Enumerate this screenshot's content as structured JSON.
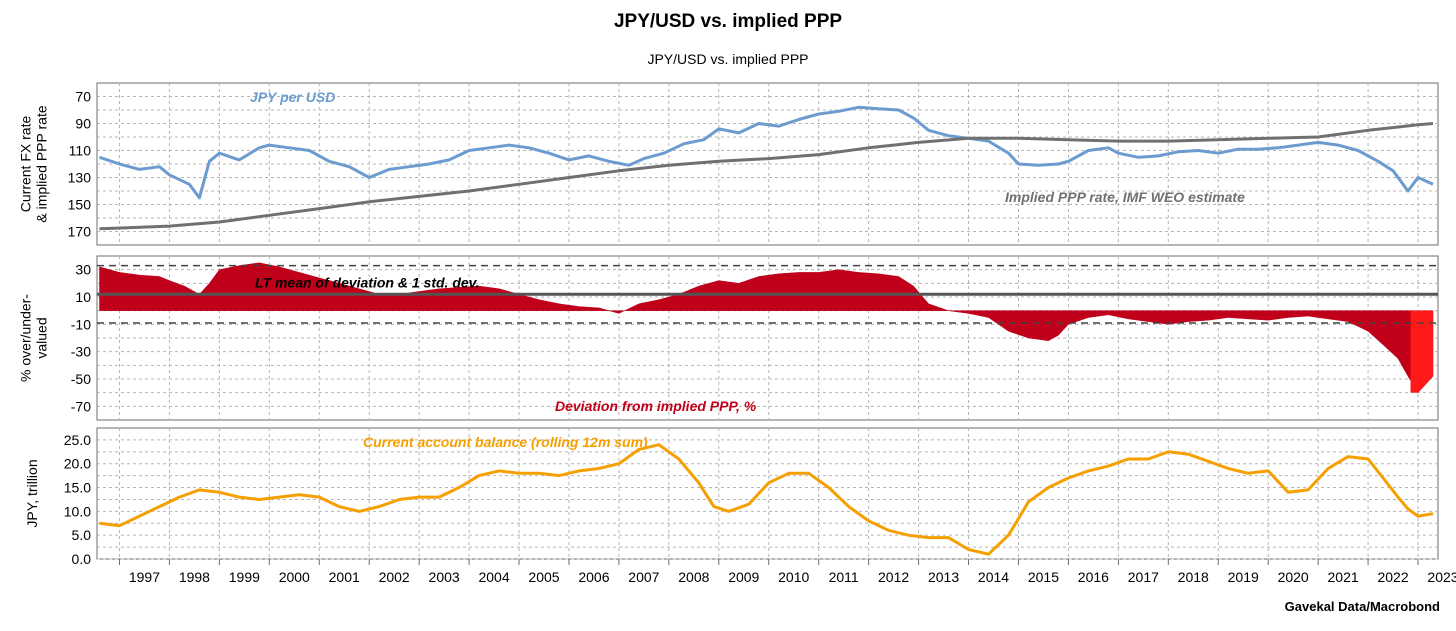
{
  "title": "JPY/USD vs. implied PPP",
  "subtitle": "JPY/USD vs. implied PPP",
  "source": "Gavekal Data/Macrobond",
  "x_axis": {
    "years": [
      "1997",
      "1998",
      "1999",
      "2000",
      "2001",
      "2002",
      "2003",
      "2004",
      "2005",
      "2006",
      "2007",
      "2008",
      "2009",
      "2010",
      "2011",
      "2012",
      "2013",
      "2014",
      "2015",
      "2016",
      "2017",
      "2018",
      "2019",
      "2020",
      "2021",
      "2022",
      "2023"
    ],
    "range": [
      1996.55,
      2023.4
    ]
  },
  "chart_data": [
    {
      "type": "line",
      "ylabel": [
        "Current FX rate",
        "& implied PPP rate"
      ],
      "y_inverted": true,
      "ylim": [
        60,
        180
      ],
      "yticks": [
        "70",
        "90",
        "110",
        "130",
        "150",
        "170"
      ],
      "grid": true,
      "series": [
        {
          "name": "JPY per USD",
          "color": "#6c9bcf",
          "x": [
            1996.6,
            1997.0,
            1997.4,
            1997.8,
            1998.0,
            1998.4,
            1998.6,
            1998.8,
            1999.0,
            1999.4,
            1999.8,
            2000.0,
            2000.4,
            2000.8,
            2001.2,
            2001.6,
            2002.0,
            2002.4,
            2002.8,
            2003.2,
            2003.6,
            2004.0,
            2004.4,
            2004.8,
            2005.2,
            2005.6,
            2006.0,
            2006.4,
            2006.8,
            2007.2,
            2007.5,
            2007.9,
            2008.3,
            2008.7,
            2009.0,
            2009.4,
            2009.8,
            2010.2,
            2010.6,
            2011.0,
            2011.4,
            2011.8,
            2012.2,
            2012.6,
            2012.9,
            2013.2,
            2013.6,
            2014.0,
            2014.4,
            2014.8,
            2015.0,
            2015.4,
            2015.8,
            2016.0,
            2016.4,
            2016.8,
            2017.0,
            2017.4,
            2017.8,
            2018.2,
            2018.6,
            2019.0,
            2019.4,
            2019.8,
            2020.2,
            2020.6,
            2021.0,
            2021.4,
            2021.8,
            2022.2,
            2022.5,
            2022.8,
            2023.0,
            2023.3
          ],
          "values": [
            115,
            120,
            124,
            122,
            128,
            135,
            145,
            118,
            112,
            117,
            108,
            106,
            108,
            110,
            118,
            122,
            130,
            124,
            122,
            120,
            117,
            110,
            108,
            106,
            108,
            112,
            117,
            114,
            118,
            121,
            116,
            112,
            105,
            102,
            94,
            97,
            90,
            92,
            87,
            83,
            81,
            78,
            79,
            80,
            86,
            95,
            99,
            101,
            103,
            112,
            120,
            121,
            120,
            118,
            110,
            108,
            112,
            115,
            114,
            111,
            110,
            112,
            109,
            109,
            108,
            106,
            104,
            106,
            110,
            118,
            125,
            140,
            130,
            135
          ],
          "label_text": "JPY per USD"
        },
        {
          "name": "Implied PPP rate, IMF WEO estimate",
          "color": "#707070",
          "x": [
            1996.6,
            1998.0,
            1999.0,
            2000.0,
            2001.0,
            2002.0,
            2003.0,
            2004.0,
            2005.0,
            2006.0,
            2007.0,
            2008.0,
            2009.0,
            2010.0,
            2011.0,
            2012.0,
            2013.0,
            2014.0,
            2015.0,
            2016.0,
            2017.0,
            2018.0,
            2019.0,
            2020.0,
            2021.0,
            2022.0,
            2023.0,
            2023.3
          ],
          "values": [
            168,
            166,
            163,
            158,
            153,
            148,
            144,
            140,
            135,
            130,
            125,
            121,
            118,
            116,
            113,
            108,
            104,
            101,
            101,
            102,
            103,
            103,
            102,
            101,
            100,
            95,
            91,
            90
          ],
          "label_text": "Implied PPP rate, IMF WEO estimate"
        }
      ]
    },
    {
      "type": "area",
      "ylabel": [
        "% over/under-",
        "valued"
      ],
      "ylim": [
        -80,
        40
      ],
      "yticks": [
        "30",
        "10",
        "-10",
        "-30",
        "-50",
        "-70"
      ],
      "grid": true,
      "mean_line": 12,
      "std_bands": [
        33,
        -9
      ],
      "mean_label": "LT mean of deviation & 1 std. dev.",
      "series": [
        {
          "name": "Deviation from implied PPP, %",
          "color": "#c0001a",
          "x": [
            1996.6,
            1997.0,
            1997.4,
            1997.8,
            1998.0,
            1998.3,
            1998.6,
            1998.8,
            1999.0,
            1999.4,
            1999.8,
            2000.2,
            2000.6,
            2001.0,
            2001.4,
            2001.8,
            2002.2,
            2002.6,
            2003.0,
            2003.4,
            2003.8,
            2004.2,
            2004.6,
            2005.0,
            2005.4,
            2005.8,
            2006.2,
            2006.6,
            2007.0,
            2007.4,
            2007.8,
            2008.2,
            2008.6,
            2009.0,
            2009.4,
            2009.8,
            2010.2,
            2010.6,
            2011.0,
            2011.4,
            2011.8,
            2012.2,
            2012.6,
            2012.9,
            2013.2,
            2013.6,
            2014.0,
            2014.4,
            2014.8,
            2015.2,
            2015.6,
            2015.8,
            2016.0,
            2016.4,
            2016.8,
            2017.2,
            2017.6,
            2018.0,
            2018.4,
            2018.8,
            2019.2,
            2019.6,
            2020.0,
            2020.4,
            2020.8,
            2021.2,
            2021.6,
            2022.0,
            2022.3,
            2022.6,
            2022.8,
            2023.0,
            2023.3
          ],
          "values": [
            32,
            28,
            26,
            25,
            22,
            18,
            12,
            20,
            30,
            33,
            35,
            32,
            28,
            24,
            20,
            16,
            12,
            12,
            14,
            16,
            17,
            18,
            16,
            12,
            8,
            5,
            3,
            2,
            -2,
            5,
            8,
            12,
            18,
            22,
            20,
            25,
            27,
            28,
            28,
            30,
            28,
            27,
            25,
            18,
            5,
            0,
            -2,
            -5,
            -15,
            -20,
            -22,
            -18,
            -10,
            -5,
            -3,
            -6,
            -8,
            -10,
            -8,
            -7,
            -5,
            -6,
            -7,
            -5,
            -4,
            -6,
            -8,
            -15,
            -25,
            -35,
            -48,
            -60,
            -48
          ],
          "highlight_from_x": 2022.85,
          "highlight_color": "#ff1a1a"
        }
      ]
    },
    {
      "type": "line",
      "ylabel": [
        "JPY, trillion"
      ],
      "ylim": [
        0,
        27.5
      ],
      "yticks": [
        "0.0",
        "5.0",
        "10.0",
        "15.0",
        "20.0",
        "25.0"
      ],
      "grid": true,
      "series": [
        {
          "name": "Current account balance (rolling 12m sum)",
          "color": "#f5a000",
          "x": [
            1996.6,
            1997.0,
            1997.4,
            1997.8,
            1998.2,
            1998.6,
            1999.0,
            1999.4,
            1999.8,
            2000.2,
            2000.6,
            2001.0,
            2001.4,
            2001.8,
            2002.2,
            2002.6,
            2003.0,
            2003.4,
            2003.8,
            2004.2,
            2004.6,
            2005.0,
            2005.4,
            2005.8,
            2006.2,
            2006.6,
            2007.0,
            2007.4,
            2007.8,
            2008.2,
            2008.6,
            2008.9,
            2009.2,
            2009.6,
            2010.0,
            2010.4,
            2010.8,
            2011.2,
            2011.6,
            2012.0,
            2012.4,
            2012.8,
            2013.2,
            2013.6,
            2014.0,
            2014.4,
            2014.8,
            2015.2,
            2015.6,
            2016.0,
            2016.4,
            2016.8,
            2017.2,
            2017.6,
            2018.0,
            2018.4,
            2018.8,
            2019.2,
            2019.6,
            2020.0,
            2020.4,
            2020.8,
            2021.2,
            2021.6,
            2022.0,
            2022.3,
            2022.6,
            2022.8,
            2023.0,
            2023.3
          ],
          "values": [
            7.5,
            7.0,
            9.0,
            11.0,
            13.0,
            14.5,
            14.0,
            13.0,
            12.5,
            13.0,
            13.5,
            13.0,
            11.0,
            10.0,
            11.0,
            12.5,
            13.0,
            13.0,
            15.0,
            17.5,
            18.5,
            18.0,
            18.0,
            17.5,
            18.5,
            19.0,
            20.0,
            23.0,
            24.0,
            21.0,
            16.0,
            11.0,
            10.0,
            11.5,
            16.0,
            18.0,
            18.0,
            15.0,
            11.0,
            8.0,
            6.0,
            5.0,
            4.5,
            4.5,
            2.0,
            1.0,
            5.0,
            12.0,
            15.0,
            17.0,
            18.5,
            19.5,
            21.0,
            21.0,
            22.5,
            22.0,
            20.5,
            19.0,
            18.0,
            18.5,
            14.0,
            14.5,
            19.0,
            21.5,
            21.0,
            17.0,
            13.0,
            10.5,
            9.0,
            9.5
          ],
          "label_text": "Current account balance (rolling 12m sum)"
        }
      ]
    }
  ],
  "colors": {
    "grid": "#b5b5b5",
    "frame": "#6e6e6e",
    "mean_line": "#555555",
    "band_line": "#444444"
  }
}
